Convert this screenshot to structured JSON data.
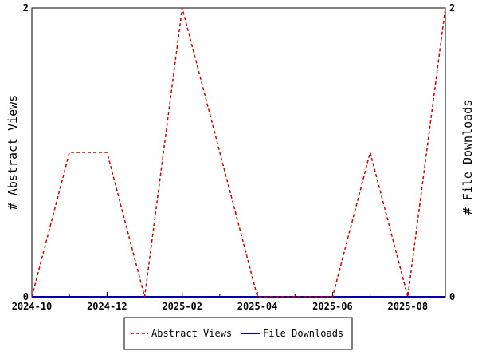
{
  "chart_data": {
    "type": "line",
    "x": [
      "2024-10",
      "2024-11",
      "2024-12",
      "2025-01",
      "2025-02",
      "2025-03",
      "2025-04",
      "2025-05",
      "2025-06",
      "2025-07",
      "2025-08",
      "2025-09"
    ],
    "x_tick_labels": [
      "2024-10",
      "2024-12",
      "2025-02",
      "2025-04",
      "2025-06",
      "2025-08"
    ],
    "series": [
      {
        "name": "Abstract Views",
        "axis": "left",
        "color": "#cc0000",
        "dash": "dashed",
        "values": [
          0,
          1,
          1,
          0,
          2,
          1,
          0,
          0,
          0,
          1,
          0,
          2
        ]
      },
      {
        "name": "File Downloads",
        "axis": "right",
        "color": "#0000aa",
        "dash": "solid",
        "values": [
          0,
          0,
          0,
          0,
          0,
          0,
          0,
          0,
          0,
          0,
          0,
          0
        ]
      }
    ],
    "ylabel_left": "# Abstract Views",
    "ylabel_right": "# File Downloads",
    "ylim_left": [
      0,
      2
    ],
    "ylim_right": [
      0,
      2
    ],
    "y_tick_labels_left": [
      "0",
      "2"
    ],
    "y_tick_labels_right": [
      "0",
      "2"
    ],
    "grid": false,
    "legend_placement": "bottom-center"
  }
}
